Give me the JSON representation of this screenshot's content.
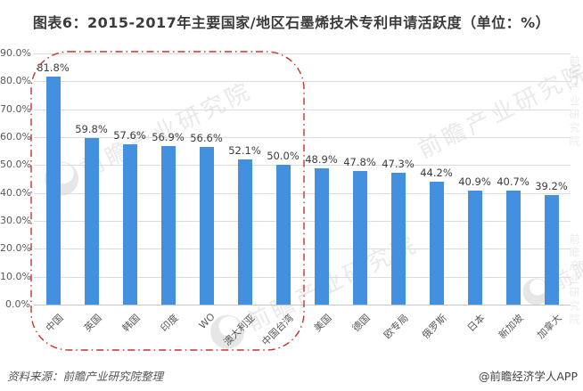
{
  "title": "图表6：2015-2017年主要国家/地区石墨烯技术专利申请活跃度（单位：%）",
  "footer": {
    "source": "资料来源：前瞻产业研究院整理",
    "credit": "@前瞻经济学人APP"
  },
  "watermark": {
    "text": "前瞻产业研究院"
  },
  "colors": {
    "bar": "#4390DF",
    "highlight_box": "#C9302C",
    "gridline": "#DCDCDC",
    "axis_text": "#595959",
    "value_label_text": "#3C3C3C",
    "title_text": "#3B3B3B"
  },
  "chart_data": {
    "type": "bar",
    "title": "图表6：2015-2017年主要国家/地区石墨烯技术专利申请活跃度（单位：%）",
    "categories": [
      "中国",
      "英国",
      "韩国",
      "印度",
      "WO",
      "澳大利亚",
      "中国台湾",
      "美国",
      "德国",
      "欧专局",
      "俄罗斯",
      "日本",
      "新加坡",
      "加拿大"
    ],
    "values": [
      81.8,
      59.8,
      57.6,
      56.9,
      56.6,
      52.1,
      50.0,
      48.9,
      47.8,
      47.3,
      44.2,
      40.9,
      40.7,
      39.2
    ],
    "value_label_format": "one_decimal_percent",
    "xlabel": "",
    "ylabel": "",
    "ylim": [
      0,
      90
    ],
    "yticks": [
      0,
      10,
      20,
      30,
      40,
      50,
      60,
      70,
      80,
      90
    ],
    "ytick_format": "one_decimal_percent",
    "grid": true,
    "legend": false,
    "x_label_rotation_deg": -45,
    "highlight_box_categories": [
      "中国",
      "英国",
      "韩国",
      "印度",
      "WO",
      "澳大利亚",
      "中国台湾"
    ]
  }
}
